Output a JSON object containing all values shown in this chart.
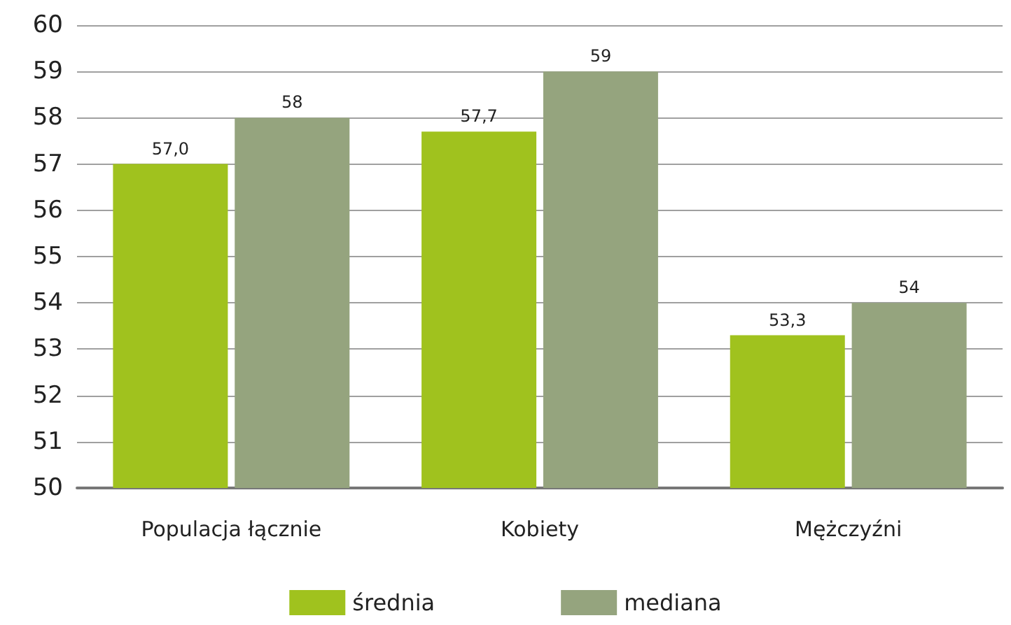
{
  "chart_data": {
    "type": "bar",
    "categories": [
      "Populacja łącznie",
      "Kobiety",
      "Mężczyźni"
    ],
    "series": [
      {
        "name": "średnia",
        "color": "#a0c21e",
        "values": [
          57.0,
          57.7,
          53.3
        ],
        "value_labels": [
          "57,0",
          "57,7",
          "53,3"
        ]
      },
      {
        "name": "mediana",
        "color": "#95a47e",
        "values": [
          58,
          59,
          54
        ],
        "value_labels": [
          "58",
          "59",
          "54"
        ]
      }
    ],
    "ylim": [
      50,
      60
    ],
    "yticks": [
      50,
      51,
      52,
      53,
      54,
      55,
      56,
      57,
      58,
      59,
      60
    ],
    "grid": "y",
    "legend": "bottom"
  }
}
